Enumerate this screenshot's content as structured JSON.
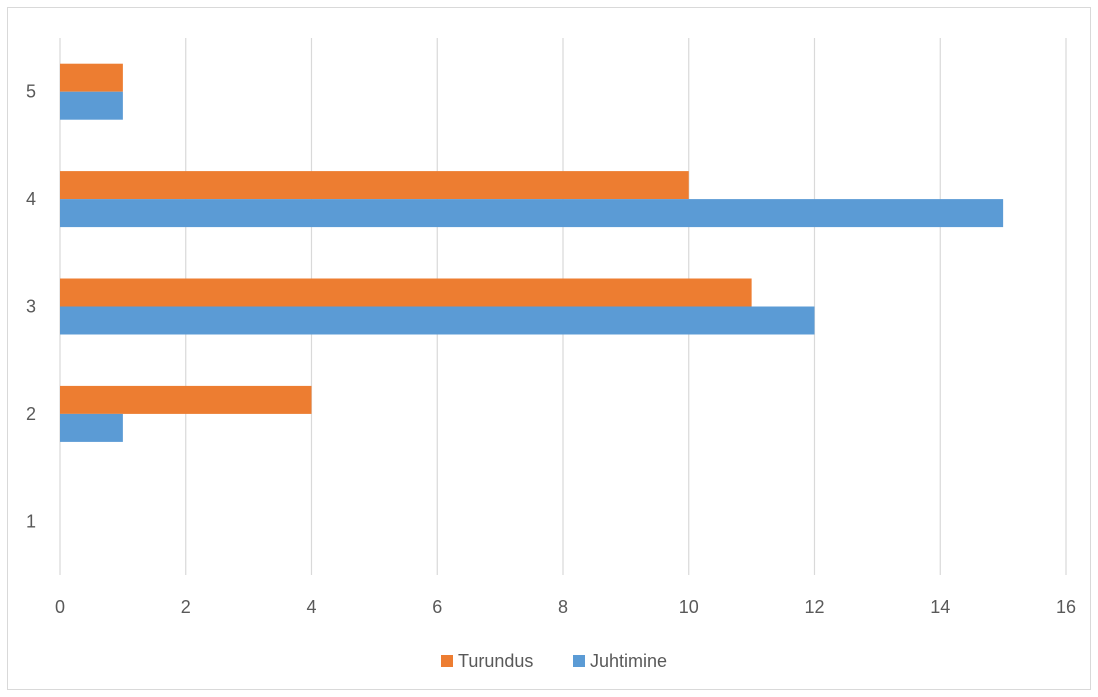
{
  "chart_data": {
    "type": "bar",
    "orientation": "horizontal",
    "categories": [
      "1",
      "2",
      "3",
      "4",
      "5"
    ],
    "series": [
      {
        "name": "Juhtimine",
        "values": [
          0,
          1,
          12,
          15,
          1
        ],
        "color": "#5b9bd5"
      },
      {
        "name": "Turundus",
        "values": [
          0,
          4,
          11,
          10,
          1
        ],
        "color": "#ed7d31"
      }
    ],
    "xlim": [
      0,
      16
    ],
    "x_ticks": [
      0,
      2,
      4,
      6,
      8,
      10,
      12,
      14,
      16
    ],
    "grid": "vertical",
    "legend": {
      "placement": "bottom",
      "order": [
        "Turundus",
        "Juhtimine"
      ]
    },
    "title": "",
    "xlabel": "",
    "ylabel": ""
  },
  "colors": {
    "gridline": "#d9d9d9",
    "text": "#595959",
    "border": "#d9d9d9"
  }
}
